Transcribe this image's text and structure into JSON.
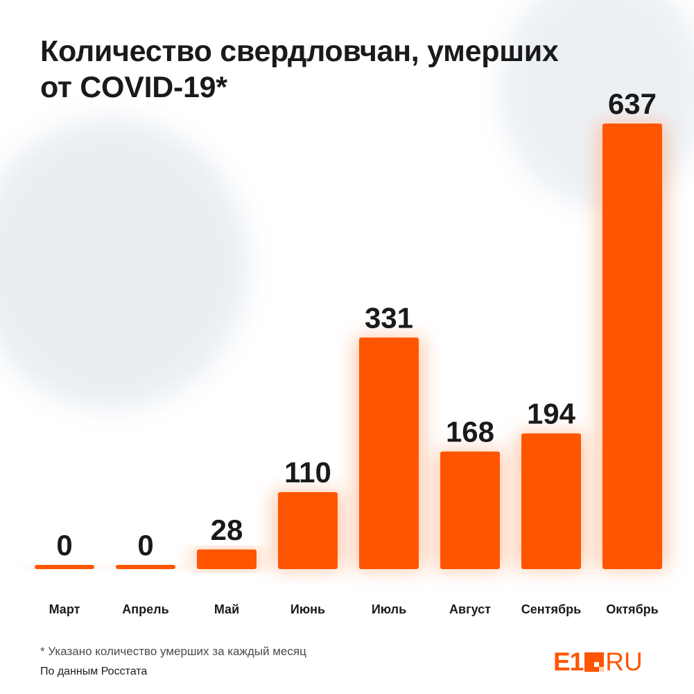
{
  "title_lines": [
    "Количество свердловчан, умерших",
    "от COVID-19*"
  ],
  "footnote": "* Указано количество умерших за каждый месяц",
  "source": "По данным Росстата",
  "logo": {
    "brand": "E1",
    "domain": "RU"
  },
  "colors": {
    "bar": "#ff5500",
    "text": "#1a1a1a",
    "glow": "#ffb38a"
  },
  "chart_data": {
    "type": "bar",
    "categories": [
      "Март",
      "Апрель",
      "Май",
      "Июнь",
      "Июль",
      "Август",
      "Сентябрь",
      "Октябрь"
    ],
    "values": [
      0,
      0,
      28,
      110,
      331,
      168,
      194,
      637
    ],
    "title": "Количество свердловчан, умерших от COVID-19*",
    "xlabel": "",
    "ylabel": "",
    "ylim": [
      0,
      637
    ],
    "grid": false,
    "legend": "none"
  }
}
